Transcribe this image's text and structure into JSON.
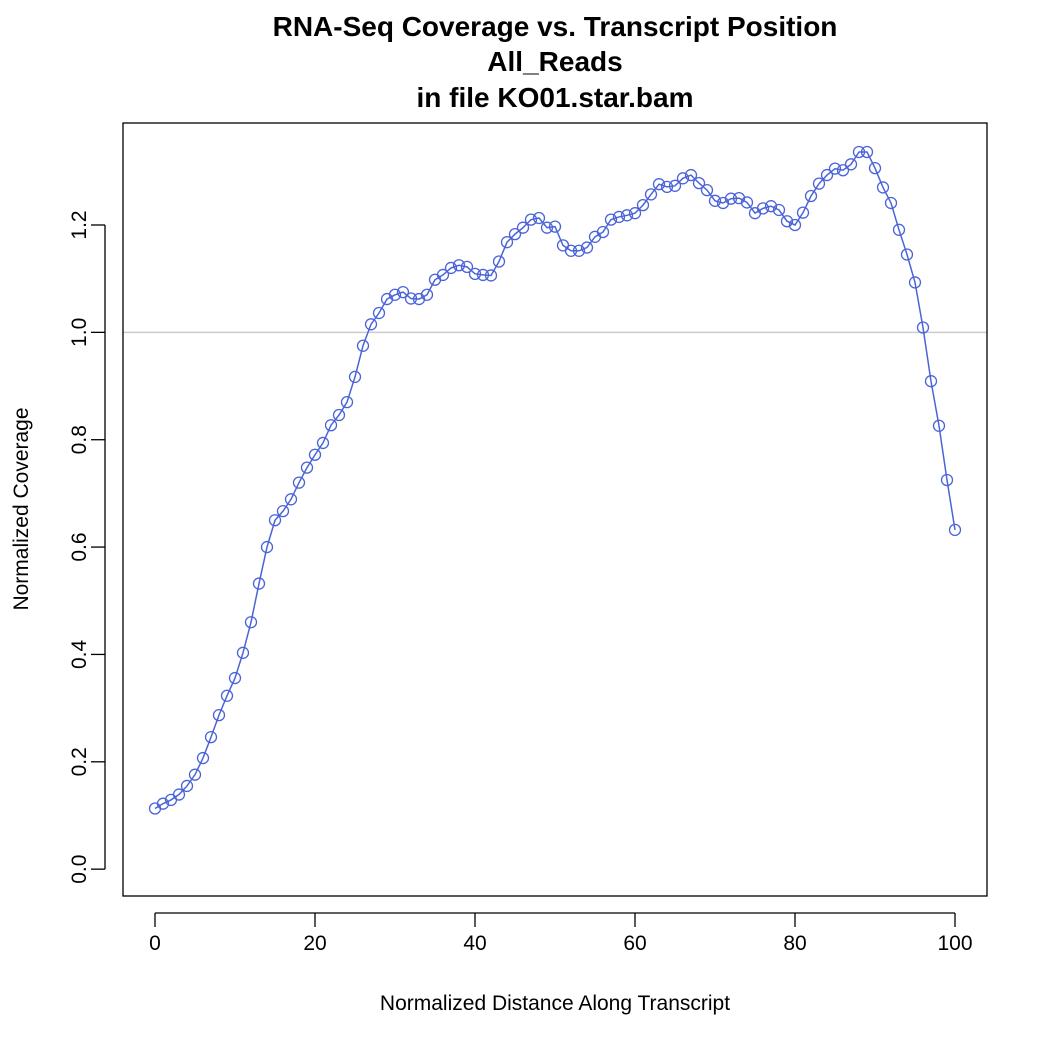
{
  "chart_data": {
    "type": "line",
    "title": "RNA-Seq Coverage vs. Transcript Position",
    "subtitle": "All_Reads",
    "subtitle2": "in file KO01.star.bam",
    "xlabel": "Normalized Distance Along Transcript",
    "ylabel": "Normalized Coverage",
    "xlim": [
      -4,
      104
    ],
    "ylim": [
      -0.05,
      1.39
    ],
    "xticks": [
      0,
      20,
      40,
      60,
      80,
      100
    ],
    "yticks": [
      0.0,
      0.2,
      0.4,
      0.6,
      0.8,
      1.0,
      1.2
    ],
    "ytick_labels": [
      "0.0",
      "0.2",
      "0.4",
      "0.6",
      "0.8",
      "1.0",
      "1.2"
    ],
    "reference_line": 1.0,
    "grid": false,
    "colors": {
      "series": "#4a64d8",
      "reference": "#cccccc",
      "axis": "#000000"
    },
    "series": [
      {
        "x": [
          0,
          1,
          2,
          3,
          4,
          5,
          6,
          7,
          8,
          9,
          10,
          11,
          12,
          13,
          14,
          15,
          16,
          17,
          18,
          19,
          20,
          21,
          22,
          23,
          24,
          25,
          26,
          27,
          28,
          29,
          30,
          31,
          32,
          33,
          34,
          35,
          36,
          37,
          38,
          39,
          40,
          41,
          42,
          43,
          44,
          45,
          46,
          47,
          48,
          49,
          50,
          51,
          52,
          53,
          54,
          55,
          56,
          57,
          58,
          59,
          60,
          61,
          62,
          63,
          64,
          65,
          66,
          67,
          68,
          69,
          70,
          71,
          72,
          73,
          74,
          75,
          76,
          77,
          78,
          79,
          80,
          81,
          82,
          83,
          84,
          85,
          86,
          87,
          88,
          89,
          90,
          91,
          92,
          93,
          94,
          95,
          96,
          97,
          98,
          99,
          100
        ],
        "values": [
          0.113,
          0.122,
          0.129,
          0.139,
          0.155,
          0.176,
          0.207,
          0.246,
          0.287,
          0.323,
          0.356,
          0.403,
          0.46,
          0.532,
          0.6,
          0.65,
          0.667,
          0.689,
          0.72,
          0.748,
          0.772,
          0.794,
          0.827,
          0.846,
          0.87,
          0.917,
          0.975,
          1.015,
          1.036,
          1.062,
          1.07,
          1.075,
          1.063,
          1.062,
          1.07,
          1.098,
          1.107,
          1.12,
          1.125,
          1.122,
          1.109,
          1.107,
          1.106,
          1.132,
          1.168,
          1.183,
          1.195,
          1.21,
          1.213,
          1.195,
          1.197,
          1.162,
          1.152,
          1.152,
          1.158,
          1.178,
          1.187,
          1.21,
          1.215,
          1.218,
          1.222,
          1.237,
          1.257,
          1.276,
          1.271,
          1.273,
          1.287,
          1.293,
          1.278,
          1.265,
          1.245,
          1.241,
          1.249,
          1.25,
          1.242,
          1.222,
          1.231,
          1.235,
          1.228,
          1.207,
          1.2,
          1.223,
          1.254,
          1.277,
          1.293,
          1.305,
          1.302,
          1.313,
          1.336,
          1.336,
          1.306,
          1.27,
          1.241,
          1.191,
          1.145,
          1.093,
          1.009,
          0.909,
          0.826,
          0.725,
          0.632
        ]
      }
    ]
  }
}
